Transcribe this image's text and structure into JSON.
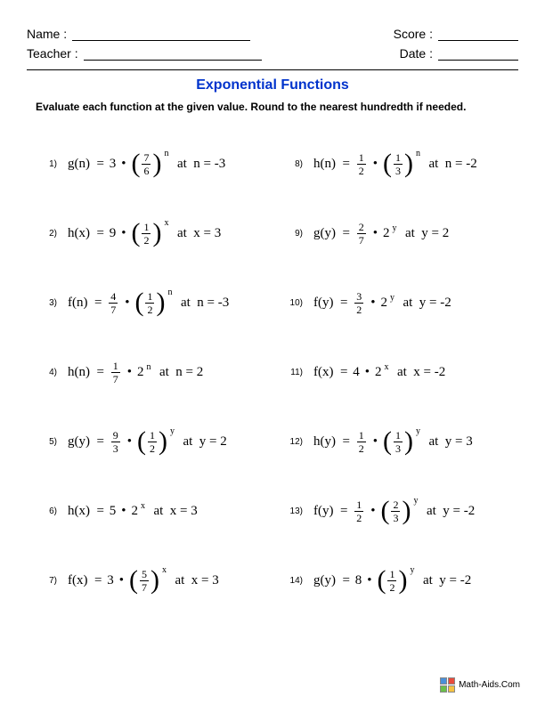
{
  "header": {
    "name_label": "Name :",
    "teacher_label": "Teacher :",
    "score_label": "Score :",
    "date_label": "Date :"
  },
  "title": "Exponential Functions",
  "instruction": "Evaluate each function at the given value. Round to the nearest hundredth if needed.",
  "problems": [
    {
      "num": "1)",
      "fn": "g(n)",
      "coef_type": "int",
      "coef": "3",
      "base_type": "frac",
      "base_n": "7",
      "base_d": "6",
      "exp": "n",
      "var": "n",
      "val": "-3"
    },
    {
      "num": "8)",
      "fn": "h(n)",
      "coef_type": "frac",
      "coef_n": "1",
      "coef_d": "2",
      "base_type": "frac",
      "base_n": "1",
      "base_d": "3",
      "exp": "n",
      "var": "n",
      "val": "-2"
    },
    {
      "num": "2)",
      "fn": "h(x)",
      "coef_type": "int",
      "coef": "9",
      "base_type": "frac",
      "base_n": "1",
      "base_d": "2",
      "exp": "x",
      "var": "x",
      "val": "3"
    },
    {
      "num": "9)",
      "fn": "g(y)",
      "coef_type": "frac",
      "coef_n": "2",
      "coef_d": "7",
      "base_type": "int",
      "base": "2",
      "exp": "y",
      "var": "y",
      "val": "2"
    },
    {
      "num": "3)",
      "fn": "f(n)",
      "coef_type": "frac",
      "coef_n": "4",
      "coef_d": "7",
      "base_type": "frac",
      "base_n": "1",
      "base_d": "2",
      "exp": "n",
      "var": "n",
      "val": "-3"
    },
    {
      "num": "10)",
      "fn": "f(y)",
      "coef_type": "frac",
      "coef_n": "3",
      "coef_d": "2",
      "base_type": "int",
      "base": "2",
      "exp": "y",
      "var": "y",
      "val": "-2"
    },
    {
      "num": "4)",
      "fn": "h(n)",
      "coef_type": "frac",
      "coef_n": "1",
      "coef_d": "7",
      "base_type": "int",
      "base": "2",
      "exp": "n",
      "var": "n",
      "val": "2"
    },
    {
      "num": "11)",
      "fn": "f(x)",
      "coef_type": "int",
      "coef": "4",
      "base_type": "int",
      "base": "2",
      "exp": "x",
      "var": "x",
      "val": "-2"
    },
    {
      "num": "5)",
      "fn": "g(y)",
      "coef_type": "frac",
      "coef_n": "9",
      "coef_d": "3",
      "base_type": "frac",
      "base_n": "1",
      "base_d": "2",
      "exp": "y",
      "var": "y",
      "val": "2"
    },
    {
      "num": "12)",
      "fn": "h(y)",
      "coef_type": "frac",
      "coef_n": "1",
      "coef_d": "2",
      "base_type": "frac",
      "base_n": "1",
      "base_d": "3",
      "exp": "y",
      "var": "y",
      "val": "3"
    },
    {
      "num": "6)",
      "fn": "h(x)",
      "coef_type": "int",
      "coef": "5",
      "base_type": "int",
      "base": "2",
      "exp": "x",
      "var": "x",
      "val": "3"
    },
    {
      "num": "13)",
      "fn": "f(y)",
      "coef_type": "frac",
      "coef_n": "1",
      "coef_d": "2",
      "base_type": "frac",
      "base_n": "2",
      "base_d": "3",
      "exp": "y",
      "var": "y",
      "val": "-2"
    },
    {
      "num": "7)",
      "fn": "f(x)",
      "coef_type": "int",
      "coef": "3",
      "base_type": "frac",
      "base_n": "5",
      "base_d": "7",
      "exp": "x",
      "var": "x",
      "val": "3"
    },
    {
      "num": "14)",
      "fn": "g(y)",
      "coef_type": "int",
      "coef": "8",
      "base_type": "frac",
      "base_n": "1",
      "base_d": "2",
      "exp": "y",
      "var": "y",
      "val": "-2"
    }
  ],
  "footer": {
    "text": "Math-Aids.Com"
  },
  "colors": {
    "title": "#0033cc",
    "text": "#000000",
    "background": "#ffffff"
  }
}
